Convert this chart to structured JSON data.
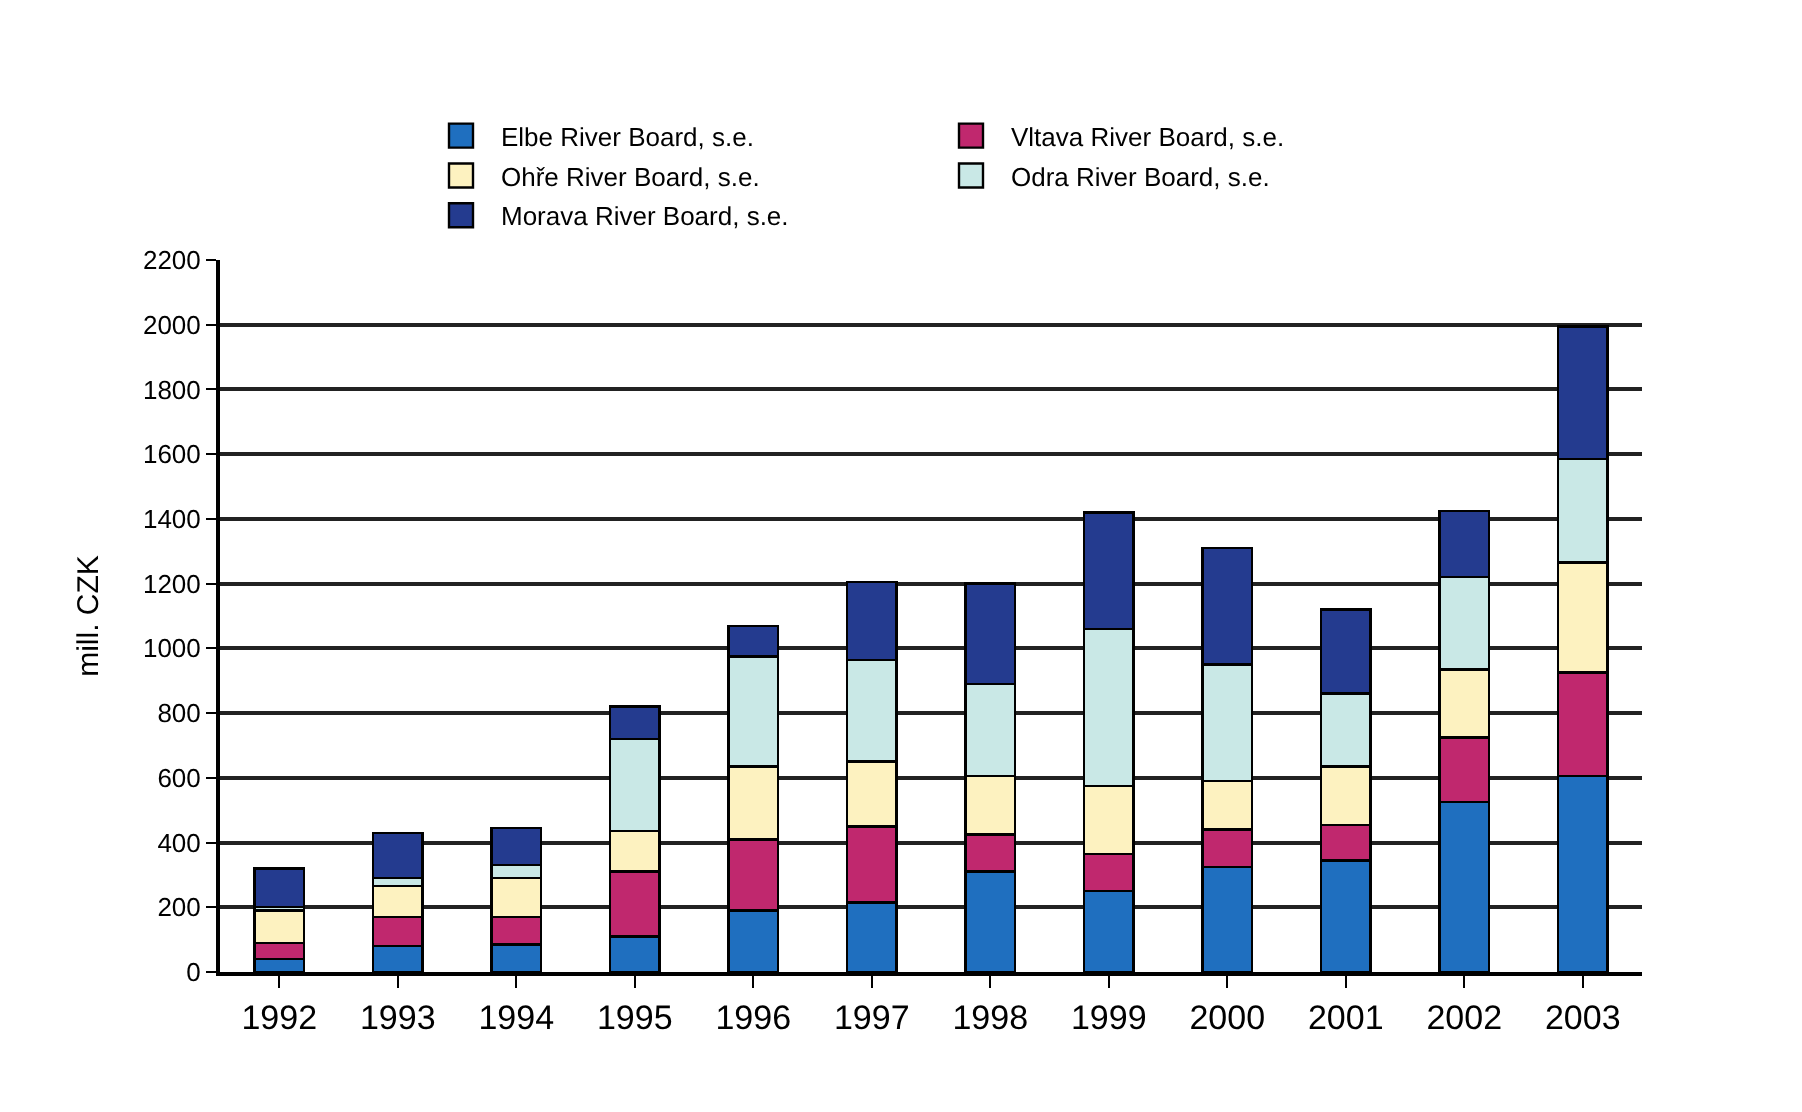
{
  "chart_data": {
    "type": "bar",
    "stacked": true,
    "ylabel": "mill. CZK",
    "categories": [
      "1992",
      "1993",
      "1994",
      "1995",
      "1996",
      "1997",
      "1998",
      "1999",
      "2000",
      "2001",
      "2002",
      "2003"
    ],
    "series": [
      {
        "name": "Elbe River Board, s.e.",
        "color": "#1f6fbf",
        "values": [
          40,
          80,
          85,
          110,
          190,
          215,
          310,
          250,
          325,
          345,
          525,
          605
        ]
      },
      {
        "name": "Vltava River Board, s.e.",
        "color": "#c0286e",
        "values": [
          50,
          90,
          85,
          200,
          220,
          235,
          115,
          115,
          115,
          110,
          200,
          320
        ]
      },
      {
        "name": "Ohře River Board, s.e.",
        "color": "#fdf2c0",
        "values": [
          100,
          95,
          120,
          125,
          225,
          200,
          180,
          210,
          150,
          180,
          210,
          340
        ]
      },
      {
        "name": "Odra River Board, s.e.",
        "color": "#c9e8e6",
        "values": [
          10,
          25,
          40,
          285,
          340,
          315,
          285,
          485,
          360,
          225,
          285,
          320
        ]
      },
      {
        "name": "Morava River Board, s.e.",
        "color": "#243b8f",
        "values": [
          120,
          140,
          115,
          100,
          95,
          240,
          310,
          360,
          360,
          260,
          205,
          410
        ]
      }
    ],
    "ylim": [
      0,
      2200
    ],
    "yticks": [
      0,
      200,
      400,
      600,
      800,
      1000,
      1200,
      1400,
      1600,
      1800,
      2000,
      2200
    ],
    "grid": "y",
    "legend": "top"
  }
}
